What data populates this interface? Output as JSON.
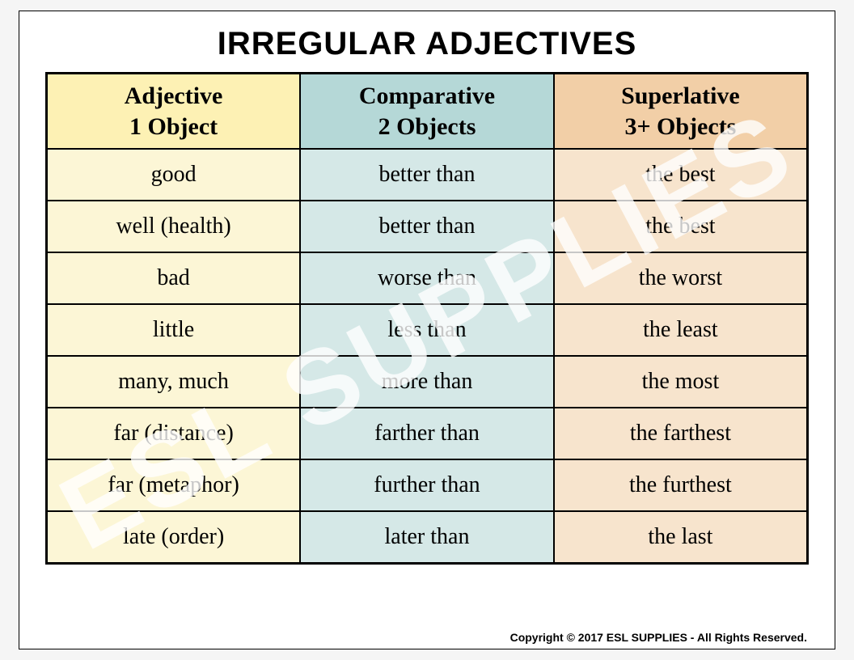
{
  "title": "IRREGULAR ADJECTIVES",
  "columns": [
    {
      "label_line1": "Adjective",
      "label_line2": "1 Object",
      "header_color": "#fdf1b4",
      "body_color": "#fcf6d6"
    },
    {
      "label_line1": "Comparative",
      "label_line2": "2 Objects",
      "header_color": "#b5d8d7",
      "body_color": "#d5e8e7"
    },
    {
      "label_line1": "Superlative",
      "label_line2": "3+ Objects",
      "header_color": "#f2cfa7",
      "body_color": "#f7e4cd"
    }
  ],
  "rows": [
    {
      "adjective": "good",
      "comparative": "better than",
      "superlative": "the best"
    },
    {
      "adjective": "well (health)",
      "comparative": "better than",
      "superlative": "the best"
    },
    {
      "adjective": "bad",
      "comparative": "worse than",
      "superlative": "the worst"
    },
    {
      "adjective": "little",
      "comparative": "less than",
      "superlative": "the least"
    },
    {
      "adjective": "many, much",
      "comparative": "more than",
      "superlative": "the most"
    },
    {
      "adjective": "far (distance)",
      "comparative": "farther than",
      "superlative": "the farthest"
    },
    {
      "adjective": "far (metaphor)",
      "comparative": "further than",
      "superlative": "the furthest"
    },
    {
      "adjective": "late (order)",
      "comparative": "later than",
      "superlative": "the last"
    }
  ],
  "watermark_text": "ESL SUPPLIES",
  "copyright": "Copyright © 2017 ESL SUPPLIES - All Rights Reserved.",
  "style": {
    "page_bg": "#f5f5f5",
    "poster_bg": "#ffffff",
    "border_color": "#000000",
    "title_font": "Arial",
    "title_fontsize": 40,
    "body_font": "Comic Sans MS",
    "header_fontsize": 30,
    "cell_fontsize": 28,
    "watermark_color": "rgba(255,255,255,0.78)",
    "watermark_fontsize": 130,
    "watermark_rotation_deg": -28,
    "copyright_fontsize": 14
  }
}
